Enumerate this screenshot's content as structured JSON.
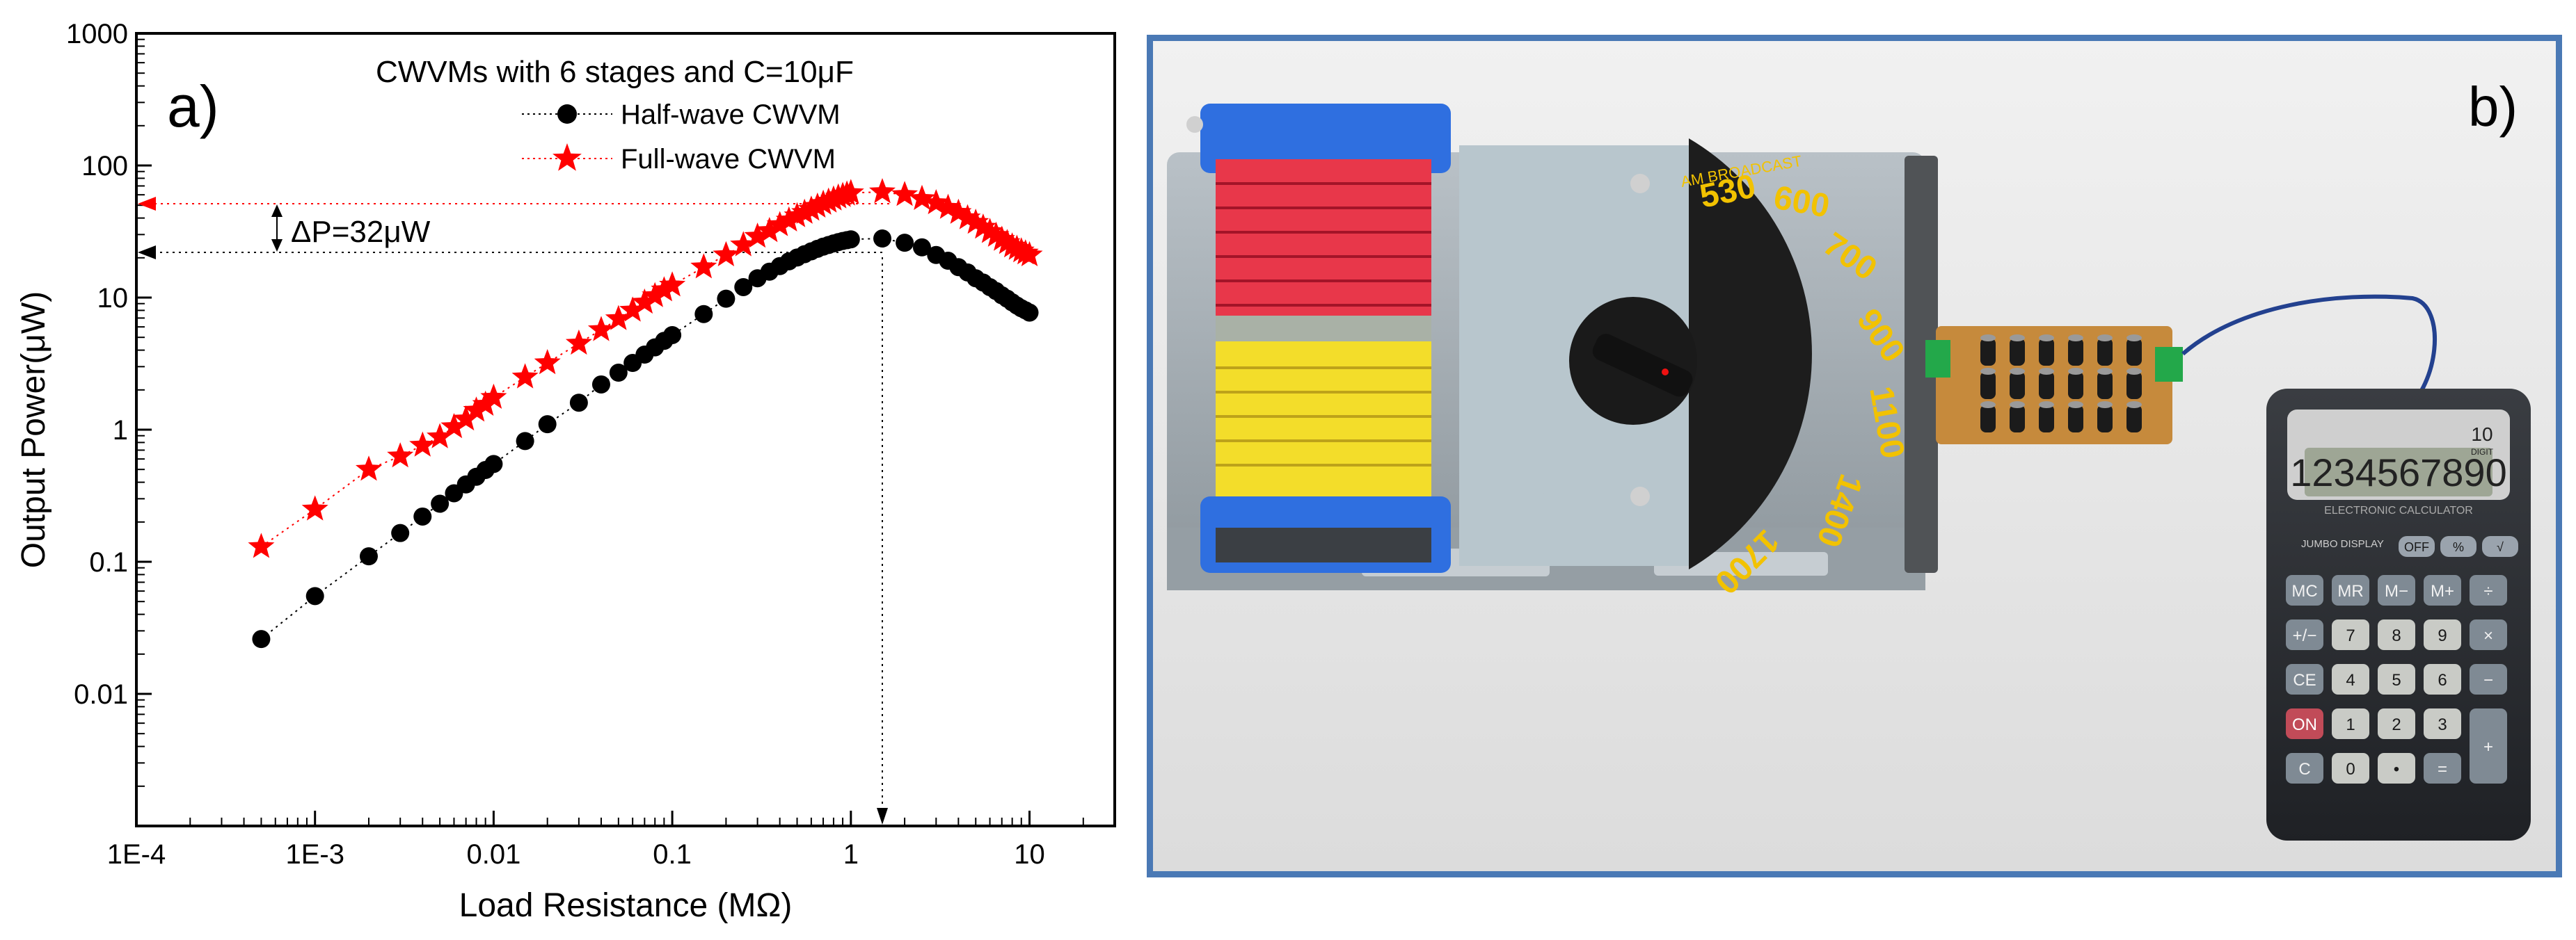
{
  "panel_a": {
    "label": "a)"
  },
  "panel_b": {
    "label": "b)"
  },
  "chart_data": {
    "type": "scatter",
    "title": "CWVMs with 6 stages and C=10μF",
    "xlabel": "Load Resistance (MΩ)",
    "ylabel": "Output Power(μW)",
    "xscale": "log",
    "yscale": "log",
    "xlim": [
      0.0001,
      30
    ],
    "ylim": [
      0.001,
      1000
    ],
    "xticks": [
      "1E-4",
      "1E-3",
      "0.01",
      "0.1",
      "1",
      "10"
    ],
    "yticks": [
      "0.01",
      "0.1",
      "1",
      "10",
      "100",
      "1000"
    ],
    "legend_position": "top-center",
    "grid": false,
    "annotation": "ΔP=32μW",
    "series": [
      {
        "name": "Half-wave CWVM",
        "color": "#000000",
        "marker": "circle",
        "x": [
          0.0005,
          0.001,
          0.002,
          0.003,
          0.004,
          0.005,
          0.006,
          0.007,
          0.008,
          0.009,
          0.01,
          0.015,
          0.02,
          0.03,
          0.04,
          0.05,
          0.06,
          0.07,
          0.08,
          0.09,
          0.1,
          0.15,
          0.2,
          0.25,
          0.3,
          0.35,
          0.4,
          0.45,
          0.5,
          0.55,
          0.6,
          0.65,
          0.7,
          0.75,
          0.8,
          0.85,
          0.9,
          0.95,
          1.0,
          1.5,
          2,
          2.5,
          3,
          3.5,
          4,
          4.5,
          5,
          5.5,
          6,
          6.5,
          7,
          7.5,
          8,
          8.5,
          9,
          9.5,
          10
        ],
        "y": [
          0.026,
          0.055,
          0.11,
          0.165,
          0.22,
          0.275,
          0.33,
          0.385,
          0.44,
          0.495,
          0.55,
          0.82,
          1.1,
          1.6,
          2.2,
          2.7,
          3.2,
          3.7,
          4.2,
          4.7,
          5.2,
          7.5,
          9.8,
          12,
          14,
          15.7,
          17.3,
          18.8,
          20.1,
          21.3,
          22.4,
          23.4,
          24.3,
          25.0,
          25.7,
          26.3,
          26.8,
          27.2,
          27.6,
          28,
          26,
          24,
          21,
          19,
          17,
          15.5,
          14,
          13,
          12,
          11.2,
          10.4,
          9.8,
          9.2,
          8.7,
          8.3,
          8.0,
          7.7
        ]
      },
      {
        "name": "Full-wave CWVM",
        "color": "#ff0000",
        "marker": "star",
        "x": [
          0.0005,
          0.001,
          0.002,
          0.003,
          0.004,
          0.005,
          0.006,
          0.007,
          0.008,
          0.009,
          0.01,
          0.015,
          0.02,
          0.03,
          0.04,
          0.05,
          0.06,
          0.07,
          0.08,
          0.09,
          0.1,
          0.15,
          0.2,
          0.25,
          0.3,
          0.35,
          0.4,
          0.45,
          0.5,
          0.55,
          0.6,
          0.65,
          0.7,
          0.75,
          0.8,
          0.85,
          0.9,
          0.95,
          1.0,
          1.5,
          2,
          2.5,
          3,
          3.5,
          4,
          4.5,
          5,
          5.5,
          6,
          6.5,
          7,
          7.5,
          8,
          8.5,
          9,
          9.5,
          10
        ],
        "y": [
          0.13,
          0.25,
          0.5,
          0.63,
          0.76,
          0.88,
          1.05,
          1.2,
          1.4,
          1.55,
          1.75,
          2.5,
          3.2,
          4.5,
          5.7,
          6.9,
          8.0,
          9.2,
          10.3,
          11.4,
          12.4,
          17,
          21,
          25,
          29,
          32,
          35.5,
          38.5,
          41.5,
          44,
          46.5,
          49,
          51.5,
          53.5,
          55.5,
          57.5,
          59,
          60.5,
          62,
          63,
          60,
          56,
          52,
          48,
          44,
          40,
          37,
          34,
          31.5,
          29.5,
          27.5,
          26,
          24.5,
          23.5,
          22.5,
          21.7,
          21
        ]
      }
    ]
  },
  "photo": {
    "description_labels": {
      "dial_numbers": [
        "530",
        "600",
        "700",
        "900",
        "1100",
        "1400",
        "1700"
      ],
      "dial_brand": "AM BROADCAST",
      "calculator_display": "1234567890",
      "calculator_brand": "ELECTRONIC CALCULATOR",
      "calculator_digit_badge": "10",
      "calculator_digit_badge_sub": "DIGIT",
      "jumbo_display": "JUMBO DISPLAY"
    },
    "calculator_keys": [
      [
        "MC",
        "MR",
        "M−",
        "M+",
        "÷"
      ],
      [
        "+/−",
        "7",
        "8",
        "9",
        "×"
      ],
      [
        "CE",
        "4",
        "5",
        "6",
        "−"
      ],
      [
        "ON",
        "1",
        "2",
        "3",
        "+"
      ],
      [
        "C",
        "0",
        "•",
        "="
      ]
    ],
    "calculator_top_keys": [
      "OFF",
      "%",
      "√"
    ]
  }
}
